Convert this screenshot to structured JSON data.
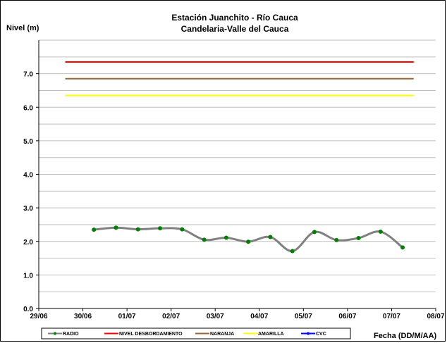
{
  "chart_data": {
    "type": "line",
    "title": "Estación Juanchito - Río Cauca",
    "subtitle": "Candelaria-Valle del Cauca",
    "ylabel": "Nivel (m)",
    "xlabel": "Fecha (DD/M/AA)",
    "ylim": [
      0,
      8
    ],
    "y_ticks": [
      "0.0",
      "1.0",
      "2.0",
      "3.0",
      "4.0",
      "5.0",
      "6.0",
      "7.0"
    ],
    "x_ticks": [
      "29/06",
      "30/06",
      "01/07",
      "02/07",
      "03/07",
      "04/07",
      "05/07",
      "06/07",
      "07/07",
      "08/07"
    ],
    "x_domain": [
      0,
      9
    ],
    "grid": true,
    "legend_position": "bottom",
    "series": [
      {
        "name": "RADIO",
        "color": "#808080",
        "marker_color": "#008000",
        "smooth": true,
        "x": [
          1.25,
          1.75,
          2.25,
          2.75,
          3.25,
          3.75,
          4.25,
          4.75,
          5.25,
          5.75,
          6.25,
          6.75,
          7.25,
          7.75,
          8.25
        ],
        "values": [
          2.35,
          2.41,
          2.36,
          2.39,
          2.36,
          2.05,
          2.11,
          1.99,
          2.13,
          1.71,
          2.28,
          2.04,
          2.1,
          2.29,
          1.82
        ]
      },
      {
        "name": "NIVEL DESBORDAMIENTO",
        "color": "#ff0000",
        "x": [
          0.6,
          8.5
        ],
        "values": [
          7.35,
          7.35
        ]
      },
      {
        "name": "NARANJA",
        "color": "#996633",
        "x": [
          0.6,
          8.5
        ],
        "values": [
          6.85,
          6.85
        ]
      },
      {
        "name": "AMARILLA",
        "color": "#ffff00",
        "x": [
          0.6,
          8.5
        ],
        "values": [
          6.35,
          6.35
        ]
      },
      {
        "name": "CVC",
        "color": "#0000ff",
        "marker_color": "#0000ff",
        "x": [],
        "values": []
      }
    ]
  }
}
